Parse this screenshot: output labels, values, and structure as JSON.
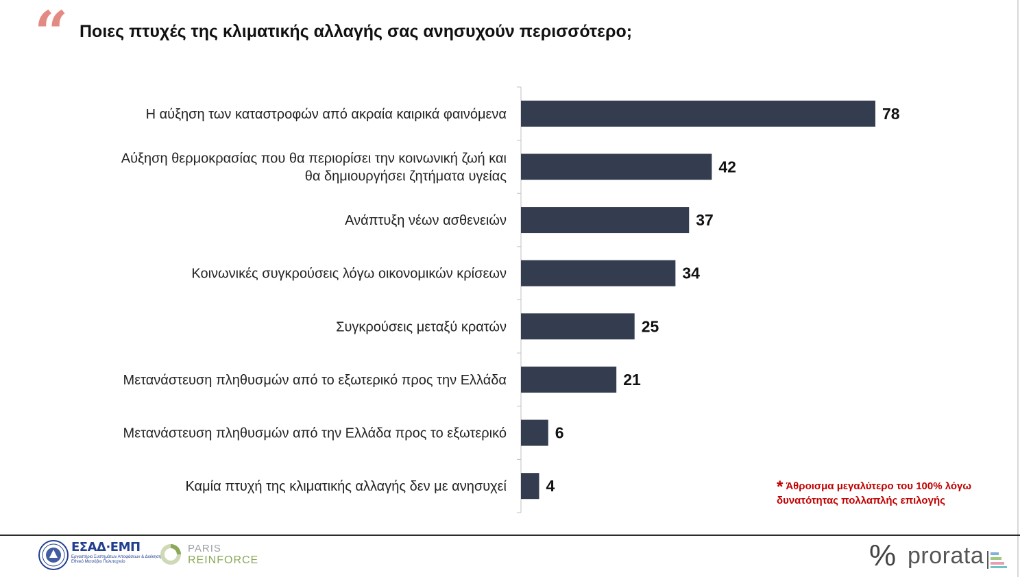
{
  "header": {
    "quote_icon": "quote-mark-icon",
    "quote_glyph": "“",
    "title": "Ποιες πτυχές της κλιματικής αλλαγής σας ανησυχούν περισσότερο;"
  },
  "chart_data": {
    "type": "bar",
    "orientation": "horizontal",
    "categories": [
      "Η αύξηση των καταστροφών από ακραία καιρικά φαινόμενα",
      "Αύξηση θερμοκρασίας που θα περιορίσει την κοινωνική ζωή και θα δημιουργήσει ζητήματα υγείας",
      "Ανάπτυξη νέων ασθενειών",
      "Κοινωνικές συγκρούσεις λόγω οικονομικών κρίσεων",
      "Συγκρούσεις μεταξύ κρατών",
      "Μετανάστευση πληθυσμών από το εξωτερικό προς την Ελλάδα",
      "Μετανάστευση πληθυσμών από την Ελλάδα προς το εξωτερικό",
      "Καμία πτυχή της κλιματικής αλλαγής δεν με ανησυχεί"
    ],
    "label_lines": [
      [
        "Η αύξηση των καταστροφών από ακραία καιρικά φαινόμενα"
      ],
      [
        "Αύξηση θερμοκρασίας που θα περιορίσει την κοινωνική ζωή και",
        "θα δημιουργήσει ζητήματα υγείας"
      ],
      [
        "Ανάπτυξη νέων ασθενειών"
      ],
      [
        "Κοινωνικές συγκρούσεις λόγω οικονομικών κρίσεων"
      ],
      [
        "Συγκρούσεις μεταξύ κρατών"
      ],
      [
        "Μετανάστευση πληθυσμών από το εξωτερικό προς την Ελλάδα"
      ],
      [
        "Μετανάστευση πληθυσμών από την Ελλάδα προς το εξωτερικό"
      ],
      [
        "Καμία πτυχή της κλιματικής αλλαγής δεν με ανησυχεί"
      ]
    ],
    "values": [
      78,
      42,
      37,
      34,
      25,
      21,
      6,
      4
    ],
    "data_labels": [
      "78",
      "42",
      "37",
      "34",
      "25",
      "21",
      "6",
      "4"
    ],
    "bar_color": "#333d4f",
    "xlim": [
      0,
      100
    ],
    "grid": false,
    "legend": "none",
    "title": "",
    "xlabel": "",
    "ylabel": ""
  },
  "footnote": {
    "star": "*",
    "text": "Άθροισμα μεγαλύτερο του 100% λόγω δυνατότητας πολλαπλής επιλογής",
    "color": "#c00000"
  },
  "footer": {
    "esad": {
      "icon": "university-seal-icon",
      "name": "ΕΣΑΔ·ΕΜΠ",
      "subtitle_line1": "Εργαστήριο Συστημάτων Αποφάσεων & Διοίκησης",
      "subtitle_line2": "Εθνικό Μετσόβιο Πολυτεχνείο"
    },
    "paris": {
      "icon": "paris-reinforce-ring-icon",
      "line1": "PARIS",
      "line2": "REINFORCE"
    },
    "prorata": {
      "percent": "%",
      "word": "prorata",
      "icon": "prorata-stripes-icon"
    }
  }
}
